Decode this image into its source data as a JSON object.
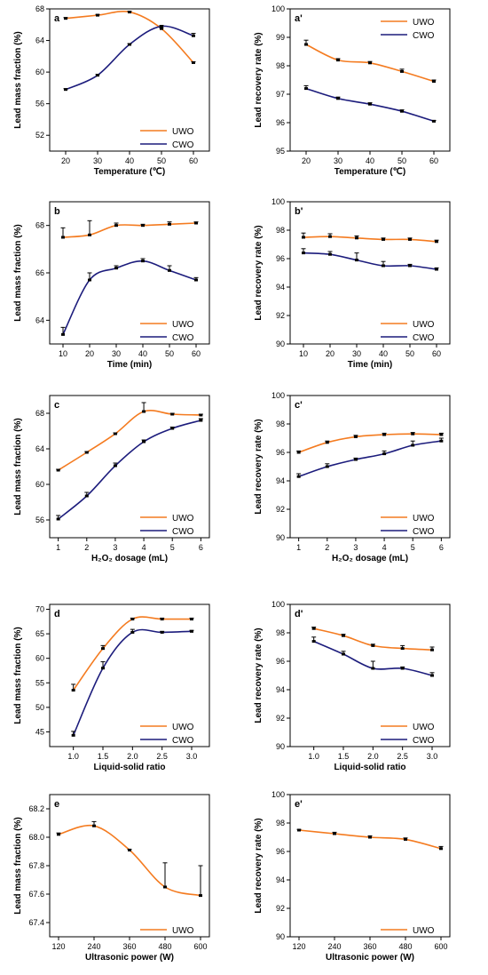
{
  "colors": {
    "UWO": "#f47b20",
    "CWO": "#1c1c7c"
  },
  "chart_data": [
    {
      "type": "line",
      "panel_label": "a",
      "xlabel": "Temperature (℃)",
      "ylabel": "Lead mass fraction (%)",
      "xlim": [
        15,
        65
      ],
      "ylim": [
        50,
        68
      ],
      "xticks": [
        "20",
        "30",
        "40",
        "50",
        "60"
      ],
      "yticks": [
        "52",
        "56",
        "60",
        "64",
        "68"
      ],
      "legend_position": "bottom-right",
      "series": [
        {
          "name": "UWO",
          "x": [
            20,
            30,
            40,
            50,
            60
          ],
          "y": [
            66.8,
            67.2,
            67.6,
            65.5,
            61.2
          ],
          "err": [
            0.1,
            0.1,
            0.1,
            0.1,
            0.1
          ]
        },
        {
          "name": "CWO",
          "x": [
            20,
            30,
            40,
            50,
            60
          ],
          "y": [
            57.8,
            59.6,
            63.5,
            65.8,
            64.6
          ],
          "err": [
            0.1,
            0.1,
            0.1,
            0.1,
            0.3
          ]
        }
      ]
    },
    {
      "type": "line",
      "panel_label": "a'",
      "xlabel": "Temperature (℃)",
      "ylabel": "Lead recovery rate (%)",
      "xlim": [
        15,
        65
      ],
      "ylim": [
        95,
        100
      ],
      "xticks": [
        "20",
        "30",
        "40",
        "50",
        "60"
      ],
      "yticks": [
        "95",
        "96",
        "97",
        "98",
        "99",
        "100"
      ],
      "legend_position": "top-right",
      "series": [
        {
          "name": "UWO",
          "x": [
            20,
            30,
            40,
            50,
            60
          ],
          "y": [
            98.75,
            98.2,
            98.1,
            97.8,
            97.45
          ],
          "err": [
            0.15,
            0.05,
            0.05,
            0.08,
            0.05
          ]
        },
        {
          "name": "CWO",
          "x": [
            20,
            30,
            40,
            50,
            60
          ],
          "y": [
            97.2,
            96.85,
            96.65,
            96.4,
            96.05
          ],
          "err": [
            0.1,
            0.05,
            0.05,
            0.05,
            0.03
          ]
        }
      ]
    },
    {
      "type": "line",
      "panel_label": "b",
      "xlabel": "Time (min)",
      "ylabel": "Lead mass fraction (%)",
      "xlim": [
        5,
        65
      ],
      "ylim": [
        63,
        69
      ],
      "xticks": [
        "10",
        "20",
        "30",
        "40",
        "50",
        "60"
      ],
      "yticks": [
        "64",
        "66",
        "68"
      ],
      "legend_position": "bottom-right",
      "series": [
        {
          "name": "UWO",
          "x": [
            10,
            20,
            30,
            40,
            50,
            60
          ],
          "y": [
            67.5,
            67.6,
            68.0,
            68.0,
            68.05,
            68.1
          ],
          "err": [
            0.4,
            0.6,
            0.1,
            0.05,
            0.1,
            0.05
          ]
        },
        {
          "name": "CWO",
          "x": [
            10,
            20,
            30,
            40,
            50,
            60
          ],
          "y": [
            63.4,
            65.7,
            66.2,
            66.5,
            66.1,
            65.7
          ],
          "err": [
            0.3,
            0.3,
            0.1,
            0.1,
            0.2,
            0.1
          ]
        }
      ]
    },
    {
      "type": "line",
      "panel_label": "b'",
      "xlabel": "Time (min)",
      "ylabel": "Lead recovery rate (%)",
      "xlim": [
        5,
        65
      ],
      "ylim": [
        90,
        100
      ],
      "xticks": [
        "10",
        "20",
        "30",
        "40",
        "50",
        "60"
      ],
      "yticks": [
        "90",
        "92",
        "94",
        "96",
        "98",
        "100"
      ],
      "legend_position": "bottom-right",
      "series": [
        {
          "name": "UWO",
          "x": [
            10,
            20,
            30,
            40,
            50,
            60
          ],
          "y": [
            97.5,
            97.55,
            97.45,
            97.35,
            97.35,
            97.2
          ],
          "err": [
            0.3,
            0.2,
            0.15,
            0.1,
            0.1,
            0.1
          ]
        },
        {
          "name": "CWO",
          "x": [
            10,
            20,
            30,
            40,
            50,
            60
          ],
          "y": [
            96.4,
            96.3,
            95.9,
            95.5,
            95.5,
            95.25
          ],
          "err": [
            0.3,
            0.2,
            0.5,
            0.3,
            0.1,
            0.1
          ]
        }
      ]
    },
    {
      "type": "line",
      "panel_label": "c",
      "xlabel": "H₂O₂ dosage (mL)",
      "ylabel": "Lead mass fraction (%)",
      "xlim": [
        0.7,
        6.3
      ],
      "ylim": [
        54,
        70
      ],
      "xticks": [
        "1",
        "2",
        "3",
        "4",
        "5",
        "6"
      ],
      "yticks": [
        "56",
        "60",
        "64",
        "68"
      ],
      "legend_position": "bottom-right",
      "series": [
        {
          "name": "UWO",
          "x": [
            1,
            2,
            3,
            4,
            5,
            6
          ],
          "y": [
            61.6,
            63.6,
            65.7,
            68.2,
            67.9,
            67.8
          ],
          "err": [
            0.1,
            0.1,
            0.1,
            1.0,
            0.1,
            0.1
          ]
        },
        {
          "name": "CWO",
          "x": [
            1,
            2,
            3,
            4,
            5,
            6
          ],
          "y": [
            56.1,
            58.7,
            62.1,
            64.8,
            66.3,
            67.2
          ],
          "err": [
            0.4,
            0.4,
            0.3,
            0.2,
            0.15,
            0.2
          ]
        }
      ]
    },
    {
      "type": "line",
      "panel_label": "c'",
      "xlabel": "H₂O₂ dosage (mL)",
      "ylabel": "Lead recovery rate (%)",
      "xlim": [
        0.7,
        6.3
      ],
      "ylim": [
        90,
        100
      ],
      "xticks": [
        "1",
        "2",
        "3",
        "4",
        "5",
        "6"
      ],
      "yticks": [
        "90",
        "92",
        "94",
        "96",
        "98",
        "100"
      ],
      "legend_position": "bottom-right",
      "series": [
        {
          "name": "UWO",
          "x": [
            1,
            2,
            3,
            4,
            5,
            6
          ],
          "y": [
            96.0,
            96.7,
            97.1,
            97.25,
            97.3,
            97.25
          ],
          "err": [
            0.1,
            0.1,
            0.1,
            0.1,
            0.1,
            0.1
          ]
        },
        {
          "name": "CWO",
          "x": [
            1,
            2,
            3,
            4,
            5,
            6
          ],
          "y": [
            94.3,
            95.0,
            95.5,
            95.9,
            96.5,
            96.8
          ],
          "err": [
            0.2,
            0.2,
            0.1,
            0.2,
            0.3,
            0.2
          ]
        }
      ]
    },
    {
      "type": "line",
      "panel_label": "d",
      "xlabel": "Liquid-solid ratio",
      "ylabel": "Lead mass fraction (%)",
      "xlim": [
        0.6,
        3.3
      ],
      "ylim": [
        42,
        71
      ],
      "xticks": [
        "1.0",
        "1.5",
        "2.0",
        "2.5",
        "3.0"
      ],
      "yticks": [
        "45",
        "50",
        "55",
        "60",
        "65",
        "70"
      ],
      "legend_position": "bottom-right",
      "series": [
        {
          "name": "UWO",
          "x": [
            1.0,
            1.5,
            2.0,
            2.5,
            3.0
          ],
          "y": [
            53.5,
            62.0,
            68.0,
            68.0,
            68.0
          ],
          "err": [
            1.2,
            0.6,
            0.2,
            0.2,
            0.2
          ]
        },
        {
          "name": "CWO",
          "x": [
            1.0,
            1.5,
            2.0,
            2.5,
            3.0
          ],
          "y": [
            44.3,
            58.0,
            65.3,
            65.3,
            65.5
          ],
          "err": [
            0.8,
            1.3,
            0.6,
            0.2,
            0.2
          ]
        }
      ]
    },
    {
      "type": "line",
      "panel_label": "d'",
      "xlabel": "Liquid-solid ratio",
      "ylabel": "Lead recovery rate (%)",
      "xlim": [
        0.6,
        3.3
      ],
      "ylim": [
        90,
        100
      ],
      "xticks": [
        "1.0",
        "1.5",
        "2.0",
        "2.5",
        "3.0"
      ],
      "yticks": [
        "90",
        "92",
        "94",
        "96",
        "98",
        "100"
      ],
      "legend_position": "bottom-right",
      "series": [
        {
          "name": "UWO",
          "x": [
            1.0,
            1.5,
            2.0,
            2.5,
            3.0
          ],
          "y": [
            98.3,
            97.8,
            97.1,
            96.9,
            96.8
          ],
          "err": [
            0.1,
            0.1,
            0.1,
            0.2,
            0.2
          ]
        },
        {
          "name": "CWO",
          "x": [
            1.0,
            1.5,
            2.0,
            2.5,
            3.0
          ],
          "y": [
            97.4,
            96.5,
            95.5,
            95.5,
            95.0
          ],
          "err": [
            0.3,
            0.2,
            0.5,
            0.1,
            0.2
          ]
        }
      ]
    },
    {
      "type": "line",
      "panel_label": "e",
      "xlabel": "Ultrasonic power (W)",
      "ylabel": "Lead mass fraction (%)",
      "xlim": [
        90,
        630
      ],
      "ylim": [
        67.3,
        68.3
      ],
      "xticks": [
        "120",
        "240",
        "360",
        "480",
        "600"
      ],
      "yticks": [
        "67.4",
        "67.6",
        "67.8",
        "68.0",
        "68.2"
      ],
      "legend_position": "bottom-right",
      "series": [
        {
          "name": "UWO",
          "x": [
            120,
            240,
            360,
            480,
            600
          ],
          "y": [
            68.02,
            68.08,
            67.91,
            67.65,
            67.59
          ],
          "err": [
            0.01,
            0.03,
            0.005,
            0.17,
            0.21
          ]
        }
      ]
    },
    {
      "type": "line",
      "panel_label": "e'",
      "xlabel": "Ultrasonic power (W)",
      "ylabel": "Lead recovery rate (%)",
      "xlim": [
        90,
        630
      ],
      "ylim": [
        90,
        100
      ],
      "xticks": [
        "120",
        "240",
        "360",
        "480",
        "600"
      ],
      "yticks": [
        "90",
        "92",
        "94",
        "96",
        "98",
        "100"
      ],
      "legend_position": "bottom-right",
      "series": [
        {
          "name": "UWO",
          "x": [
            120,
            240,
            360,
            480,
            600
          ],
          "y": [
            97.5,
            97.25,
            97.0,
            96.85,
            96.2
          ],
          "err": [
            0.05,
            0.1,
            0.1,
            0.1,
            0.15
          ]
        }
      ]
    }
  ]
}
